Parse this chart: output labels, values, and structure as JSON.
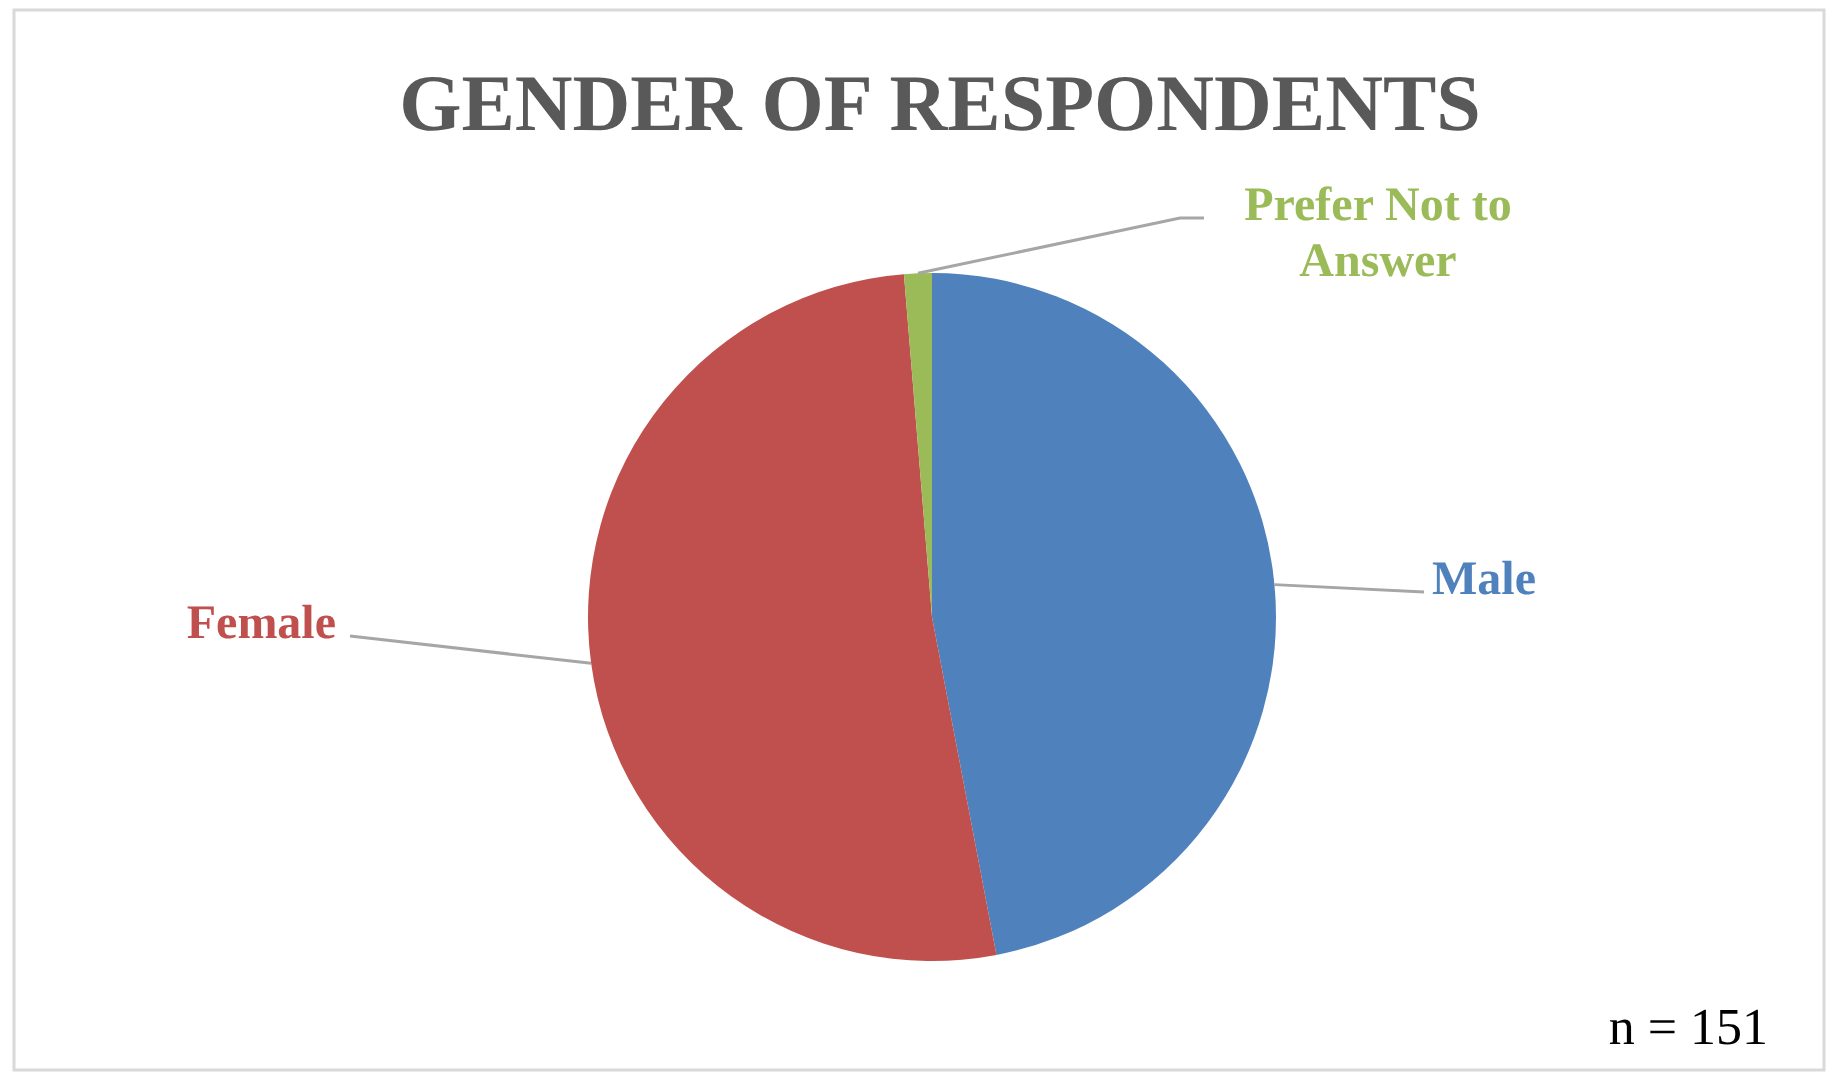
{
  "chart_data": {
    "type": "pie",
    "title": "GENDER OF RESPONDENTS",
    "categories": [
      "Male",
      "Female",
      "Prefer Not to Answer"
    ],
    "values": [
      47.0,
      51.7,
      1.3
    ],
    "colors": [
      "#4f81bd",
      "#c0504d",
      "#9bbb59"
    ],
    "annotations": [
      "n = 151"
    ]
  }
}
